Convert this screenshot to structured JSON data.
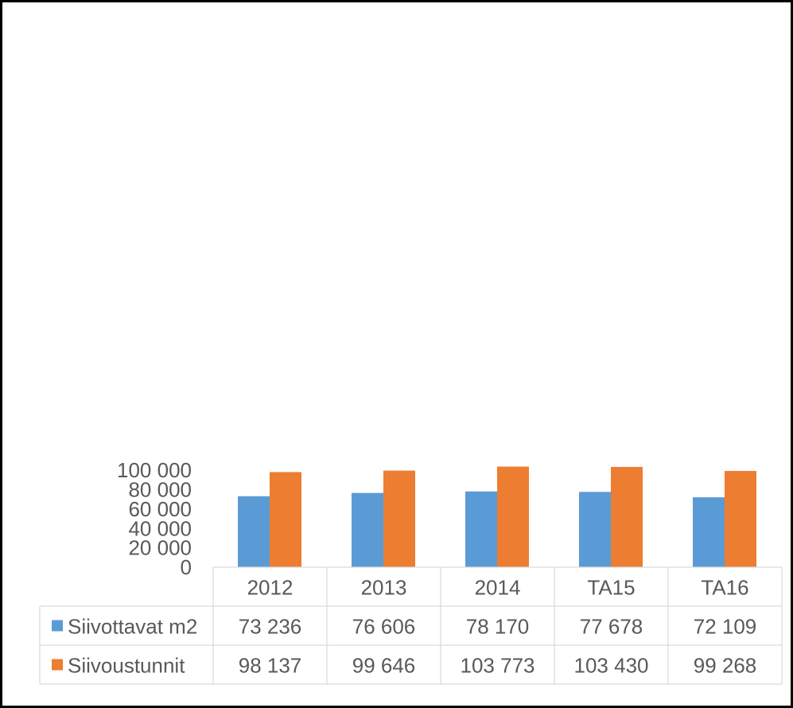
{
  "chart_data": {
    "type": "bar",
    "categories": [
      "2012",
      "2013",
      "2014",
      "TA15",
      "TA16"
    ],
    "series": [
      {
        "name": "Siivottavat m2",
        "color": "#5b9bd5",
        "values": [
          73236,
          76606,
          78170,
          77678,
          72109
        ]
      },
      {
        "name": "Siivoustunnit",
        "color": "#ed7d31",
        "values": [
          98137,
          99646,
          103773,
          103430,
          99268
        ]
      }
    ],
    "table_values": [
      [
        "73 236",
        "76 606",
        "78 170",
        "77 678",
        "72 109"
      ],
      [
        "98 137",
        "99 646",
        "103 773",
        "103 430",
        "99 268"
      ]
    ],
    "y_ticks": [
      "0",
      "20 000",
      "40 000",
      "60 000",
      "80 000",
      "100 000"
    ],
    "ylim": [
      0,
      105000
    ],
    "grid": false,
    "legend": "data-table"
  }
}
